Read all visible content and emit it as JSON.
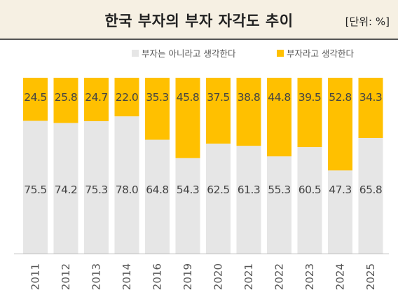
{
  "header": {
    "title": "한국 부자의 부자 자각도 추이",
    "unit": "[단위: %]"
  },
  "colors": {
    "header_bg": "#f6f0e3",
    "not_rich": "#e6e6e6",
    "rich": "#ffc000"
  },
  "chart_data": {
    "type": "bar",
    "stacked": true,
    "percent": true,
    "title": "한국 부자의 부자 자각도 추이",
    "unit": "[단위: %]",
    "categories": [
      "2011",
      "2012",
      "2013",
      "2014",
      "2016",
      "2019",
      "2020",
      "2021",
      "2022",
      "2023",
      "2024",
      "2025"
    ],
    "series": [
      {
        "name": "부자는 아니라고 생각한다",
        "color": "#e6e6e6",
        "values": [
          75.5,
          74.2,
          75.3,
          78.0,
          64.8,
          54.3,
          62.5,
          61.3,
          55.3,
          60.5,
          47.3,
          65.8
        ],
        "labels": [
          "75.5",
          "74.2",
          "75.3",
          "78.0",
          "64.8",
          "54.3",
          "62.5",
          "61.3",
          "55.3",
          "60.5",
          "47.3",
          "65.8"
        ]
      },
      {
        "name": "부자라고 생각한다",
        "color": "#ffc000",
        "values": [
          24.5,
          25.8,
          24.7,
          22.0,
          35.3,
          45.8,
          37.5,
          38.8,
          44.8,
          39.5,
          52.8,
          34.3
        ],
        "labels": [
          "24.5",
          "25.8",
          "24.7",
          "22.0",
          "35.3",
          "45.8",
          "37.5",
          "38.8",
          "44.8",
          "39.5",
          "52.8",
          "34.3"
        ]
      }
    ],
    "ylim": [
      0,
      100
    ],
    "legend_position": "top-right",
    "grid": false
  }
}
